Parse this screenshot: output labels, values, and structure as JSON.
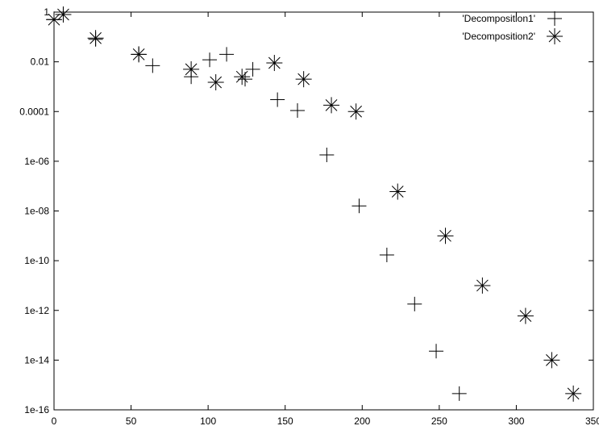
{
  "chart_data": {
    "type": "scatter",
    "title": "",
    "xlabel": "",
    "ylabel": "",
    "xlim": [
      0,
      350
    ],
    "ylim": [
      1e-16,
      1
    ],
    "yscale": "log",
    "grid": false,
    "legend_position": "top-right",
    "x_ticks": [
      0,
      50,
      100,
      150,
      200,
      250,
      300,
      350
    ],
    "x_tick_labels": [
      "0",
      "50",
      "100",
      "150",
      "200",
      "250",
      "300",
      "350"
    ],
    "y_ticks": [
      1,
      0.01,
      0.0001,
      1e-06,
      1e-08,
      1e-10,
      1e-12,
      1e-14,
      1e-16
    ],
    "y_tick_labels": [
      "1",
      "0.01",
      "0.0001",
      "1e-06",
      "1e-08",
      "1e-10",
      "1e-12",
      "1e-14",
      "1e-16"
    ],
    "series": [
      {
        "name": "'Decomposition1'",
        "marker": "plus",
        "points": [
          [
            0,
            0.5
          ],
          [
            6,
            0.8
          ],
          [
            27,
            0.08
          ],
          [
            55,
            0.02
          ],
          [
            64,
            0.007
          ],
          [
            89,
            0.0025
          ],
          [
            101,
            0.012
          ],
          [
            112,
            0.02
          ],
          [
            124,
            0.002
          ],
          [
            129,
            0.005
          ],
          [
            145,
            0.0003
          ],
          [
            158,
            0.00011
          ],
          [
            177,
            1.8e-06
          ],
          [
            198,
            1.6e-08
          ],
          [
            216,
            1.7e-10
          ],
          [
            234,
            1.8e-12
          ],
          [
            248,
            2.3e-14
          ],
          [
            263,
            4.5e-16
          ]
        ]
      },
      {
        "name": "'Decomposition2'",
        "marker": "asterisk",
        "points": [
          [
            0,
            0.5
          ],
          [
            6,
            0.8
          ],
          [
            27,
            0.09
          ],
          [
            55,
            0.02
          ],
          [
            89,
            0.005
          ],
          [
            105,
            0.0015
          ],
          [
            122,
            0.0025
          ],
          [
            143,
            0.009
          ],
          [
            162,
            0.002
          ],
          [
            180,
            0.00018
          ],
          [
            196,
            0.0001
          ],
          [
            223,
            6e-08
          ],
          [
            254,
            1e-09
          ],
          [
            278,
            1e-11
          ],
          [
            306,
            6e-13
          ],
          [
            323,
            1e-14
          ],
          [
            337,
            4.5e-16
          ]
        ]
      }
    ]
  }
}
